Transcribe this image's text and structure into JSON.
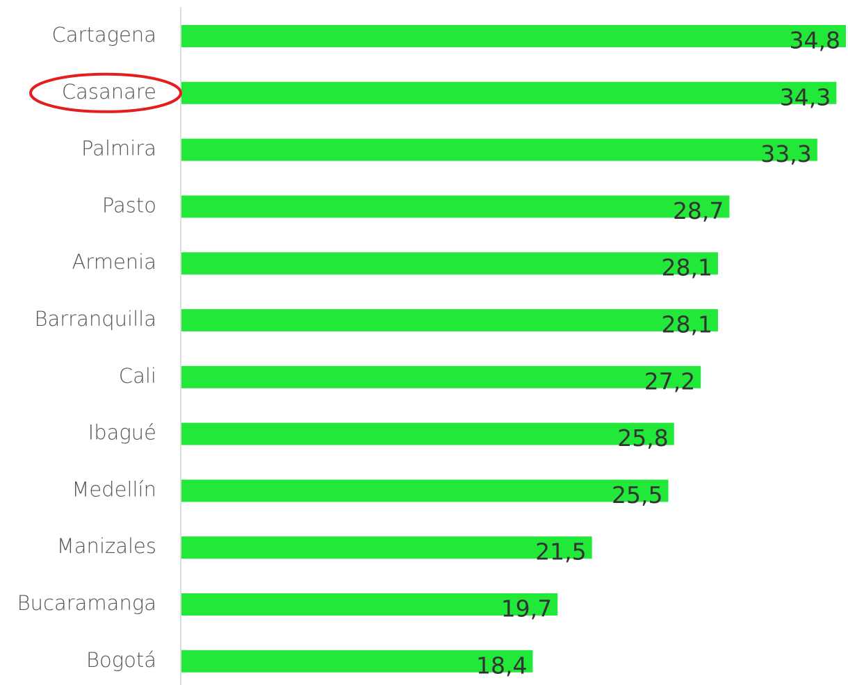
{
  "chart_data": {
    "type": "bar",
    "orientation": "horizontal",
    "categories": [
      "Cartagena",
      "Casanare",
      "Palmira",
      "Pasto",
      "Armenia",
      "Barranquilla",
      "Cali",
      "Ibagué",
      "Medellín",
      "Manizales",
      "Bucaramanga",
      "Bogotá"
    ],
    "values": [
      34.8,
      34.3,
      33.3,
      28.7,
      28.1,
      28.1,
      27.2,
      25.8,
      25.5,
      21.5,
      19.7,
      18.4
    ],
    "value_labels": [
      "34,8",
      "34,3",
      "33,3",
      "28,7",
      "28,1",
      "28,1",
      "27,2",
      "25,8",
      "25,5",
      "21,5",
      "19,7",
      "18,4"
    ],
    "color": "#22e83a"
  }
}
